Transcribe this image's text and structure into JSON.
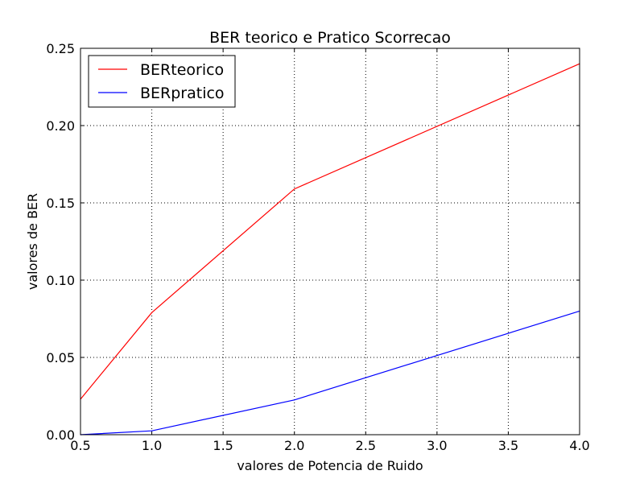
{
  "chart_data": {
    "type": "line",
    "title": "BER teorico e Pratico Scorrecao",
    "xlabel": "valores de Potencia de Ruido",
    "ylabel": "valores de BER",
    "xlim": [
      0.5,
      4.0
    ],
    "ylim": [
      0.0,
      0.25
    ],
    "xticks": [
      "0.5",
      "1.0",
      "1.5",
      "2.0",
      "2.5",
      "3.0",
      "3.5",
      "4.0"
    ],
    "yticks": [
      "0.00",
      "0.05",
      "0.10",
      "0.15",
      "0.20",
      "0.25"
    ],
    "grid": true,
    "legend_position": "top-left",
    "series": [
      {
        "name": "BERteorico",
        "color": "#ff0000",
        "x": [
          0.5,
          1.0,
          2.0,
          4.0
        ],
        "y": [
          0.023,
          0.079,
          0.159,
          0.24
        ]
      },
      {
        "name": "BERpratico",
        "color": "#0000ff",
        "x": [
          0.5,
          1.0,
          2.0,
          4.0
        ],
        "y": [
          0.0,
          0.0025,
          0.0225,
          0.08
        ]
      }
    ]
  }
}
